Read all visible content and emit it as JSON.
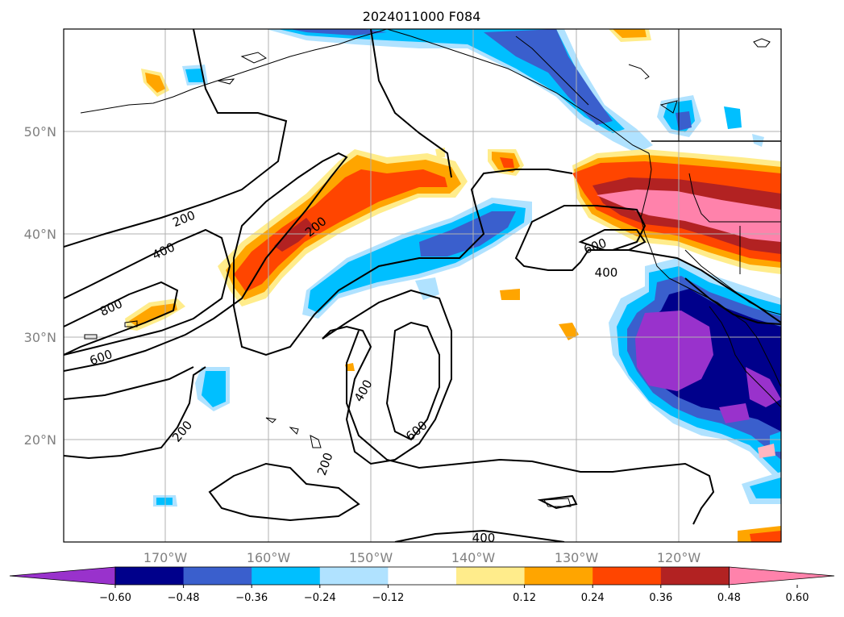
{
  "title": "2024011000 F084",
  "lat_labels": [
    "50°N",
    "40°N",
    "30°N",
    "20°N"
  ],
  "lon_labels": [
    "170°W",
    "160°W",
    "150°W",
    "140°W",
    "130°W",
    "120°W"
  ],
  "colorbar": {
    "ticks": [
      "−0.60",
      "−0.48",
      "−0.36",
      "−0.24",
      "−0.12",
      "0.12",
      "0.24",
      "0.36",
      "0.48",
      "0.60"
    ],
    "colors": [
      "#9932cc",
      "#00008b",
      "#3a5fcd",
      "#00bfff",
      "#b0e2ff",
      "#ffffff",
      "#ffec8b",
      "#ffa500",
      "#ff4500",
      "#b22222",
      "#ff82ab"
    ]
  },
  "contour_labels": [
    {
      "text": "200"
    },
    {
      "text": "400"
    },
    {
      "text": "800"
    },
    {
      "text": "600"
    },
    {
      "text": "200"
    },
    {
      "text": "200"
    },
    {
      "text": "600"
    },
    {
      "text": "400"
    },
    {
      "text": "400"
    },
    {
      "text": "600"
    },
    {
      "text": "200"
    },
    {
      "text": "400"
    }
  ]
}
